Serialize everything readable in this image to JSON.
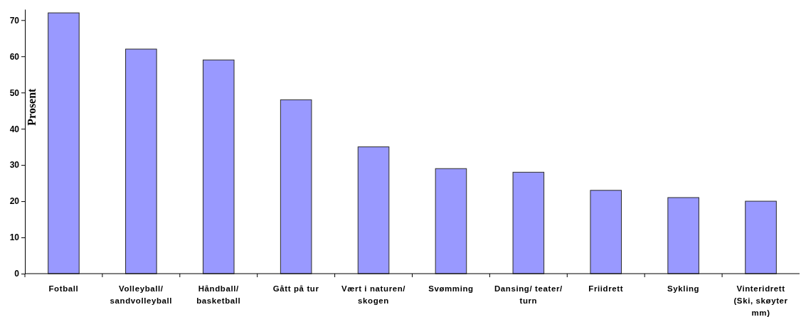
{
  "chart_data": {
    "type": "bar",
    "ylabel": "Prosent",
    "categories": [
      "Fotball",
      "Volleyball/\nsandvolleyball",
      "Håndball/\nbasketball",
      "Gått på tur",
      "Vært i naturen/\nskogen",
      "Svømming",
      "Dansing/ teater/\nturn",
      "Friidrett",
      "Sykling",
      "Vinteridrett\n(Ski, skøyter\nmm)"
    ],
    "values": [
      72,
      62,
      59,
      48,
      35,
      29,
      28,
      23,
      21,
      20
    ],
    "color": "#9999ff",
    "ylim": [
      0,
      73
    ],
    "yticks": [
      0,
      10,
      20,
      30,
      40,
      50,
      60,
      70
    ]
  }
}
